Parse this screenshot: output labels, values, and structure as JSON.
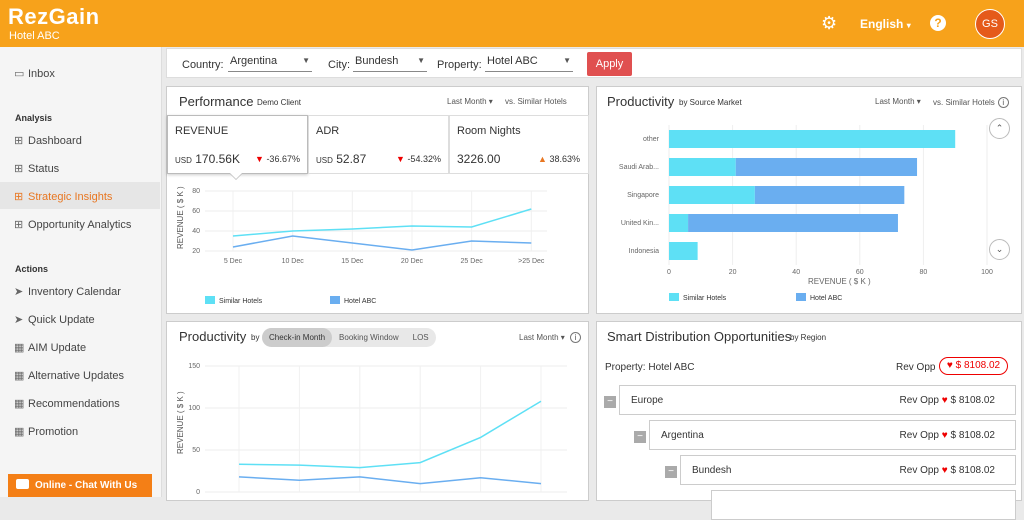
{
  "header": {
    "brand": "RezGain",
    "subtitle": "Hotel ABC",
    "language": "English",
    "avatar_initials": "GS",
    "help_label": "?"
  },
  "sidebar": {
    "inbox": "Inbox",
    "section_analysis": "Analysis",
    "analysis_items": [
      "Dashboard",
      "Status",
      "Strategic Insights",
      "Opportunity Analytics"
    ],
    "section_actions": "Actions",
    "action_items": [
      "Inventory Calendar",
      "Quick Update",
      "AIM Update",
      "Alternative Updates",
      "Recommendations",
      "Promotion"
    ],
    "chat_label": "Online - Chat With Us"
  },
  "filters": {
    "country_label": "Country:",
    "country_value": "Argentina",
    "city_label": "City:",
    "city_value": "Bundesh",
    "property_label": "Property:",
    "property_value": "Hotel ABC",
    "apply_label": "Apply"
  },
  "performance": {
    "title": "Performance",
    "subtitle": "Demo Client",
    "period": "Last Month",
    "compare": "vs. Similar Hotels",
    "kpis": [
      {
        "title": "REVENUE",
        "currency": "USD",
        "value": "170.56K",
        "change": "-36.67%",
        "direction": "down"
      },
      {
        "title": "ADR",
        "currency": "USD",
        "value": "52.87",
        "change": "-54.32%",
        "direction": "down"
      },
      {
        "title": "Room Nights",
        "currency": "",
        "value": "3226.00",
        "change": "38.63%",
        "direction": "up"
      }
    ],
    "ylabel": "REVENUE ( $ K )"
  },
  "productivity_market": {
    "title": "Productivity",
    "subtitle": "by Source Market",
    "period": "Last Month",
    "compare": "vs. Similar Hotels",
    "xlabel": "REVENUE ( $ K )"
  },
  "productivity_month": {
    "title": "Productivity",
    "by": "by",
    "tabs": [
      "Check-in Month",
      "Booking Window",
      "LOS"
    ],
    "period": "Last Month",
    "ylabel": "REVENUE ( $ K )"
  },
  "smart": {
    "title": "Smart Distribution Opportunities",
    "subtitle": "by Region",
    "property_label": "Property: Hotel ABC",
    "rev_opp_label": "Rev Opp",
    "total": "$ 8108.02",
    "rows": [
      {
        "name": "Europe",
        "label": "Rev Opp",
        "value": "$ 8108.02"
      },
      {
        "name": "Argentina",
        "label": "Rev Opp",
        "value": "$ 8108.02"
      },
      {
        "name": "Bundesh",
        "label": "Rev Opp",
        "value": "$ 8108.02"
      }
    ]
  },
  "colors": {
    "accent": "#f7a21b",
    "similar": "#5ee0f5",
    "hotel": "#6aaef0",
    "down": "#e00000",
    "up": "#e87722"
  },
  "chart_data": [
    {
      "type": "line",
      "x": [
        "5 Dec",
        "10 Dec",
        "15 Dec",
        "20 Dec",
        "25 Dec",
        ">25 Dec"
      ],
      "series": [
        {
          "name": "Similar Hotels",
          "values": [
            35,
            40,
            42,
            45,
            44,
            62
          ]
        },
        {
          "name": "Hotel ABC",
          "values": [
            24,
            35,
            28,
            21,
            30,
            28
          ]
        }
      ],
      "ylabel": "REVENUE ( $ K )",
      "yticks": [
        20,
        40,
        60,
        80
      ],
      "ylim": [
        20,
        80
      ]
    },
    {
      "type": "bar",
      "orientation": "horizontal",
      "stacked": true,
      "categories": [
        "other",
        "Saudi Arab...",
        "Singapore",
        "United Kin...",
        "Indonesia"
      ],
      "series": [
        {
          "name": "Similar Hotels",
          "values": [
            90,
            21,
            27,
            6,
            9
          ]
        },
        {
          "name": "Hotel ABC",
          "values": [
            0,
            57,
            47,
            66,
            0
          ]
        }
      ],
      "xlabel": "REVENUE ( $ K )",
      "xticks": [
        0,
        20,
        40,
        60,
        80,
        100
      ],
      "xlim": [
        0,
        100
      ]
    },
    {
      "type": "line",
      "series": [
        {
          "name": "Similar Hotels",
          "values": [
            33,
            32,
            29,
            35,
            65,
            108
          ]
        },
        {
          "name": "Hotel ABC",
          "values": [
            18,
            14,
            18,
            10,
            17,
            10
          ]
        }
      ],
      "ylabel": "REVENUE ( $ K )",
      "yticks": [
        0,
        50,
        100,
        150
      ],
      "ylim": [
        0,
        150
      ]
    }
  ]
}
